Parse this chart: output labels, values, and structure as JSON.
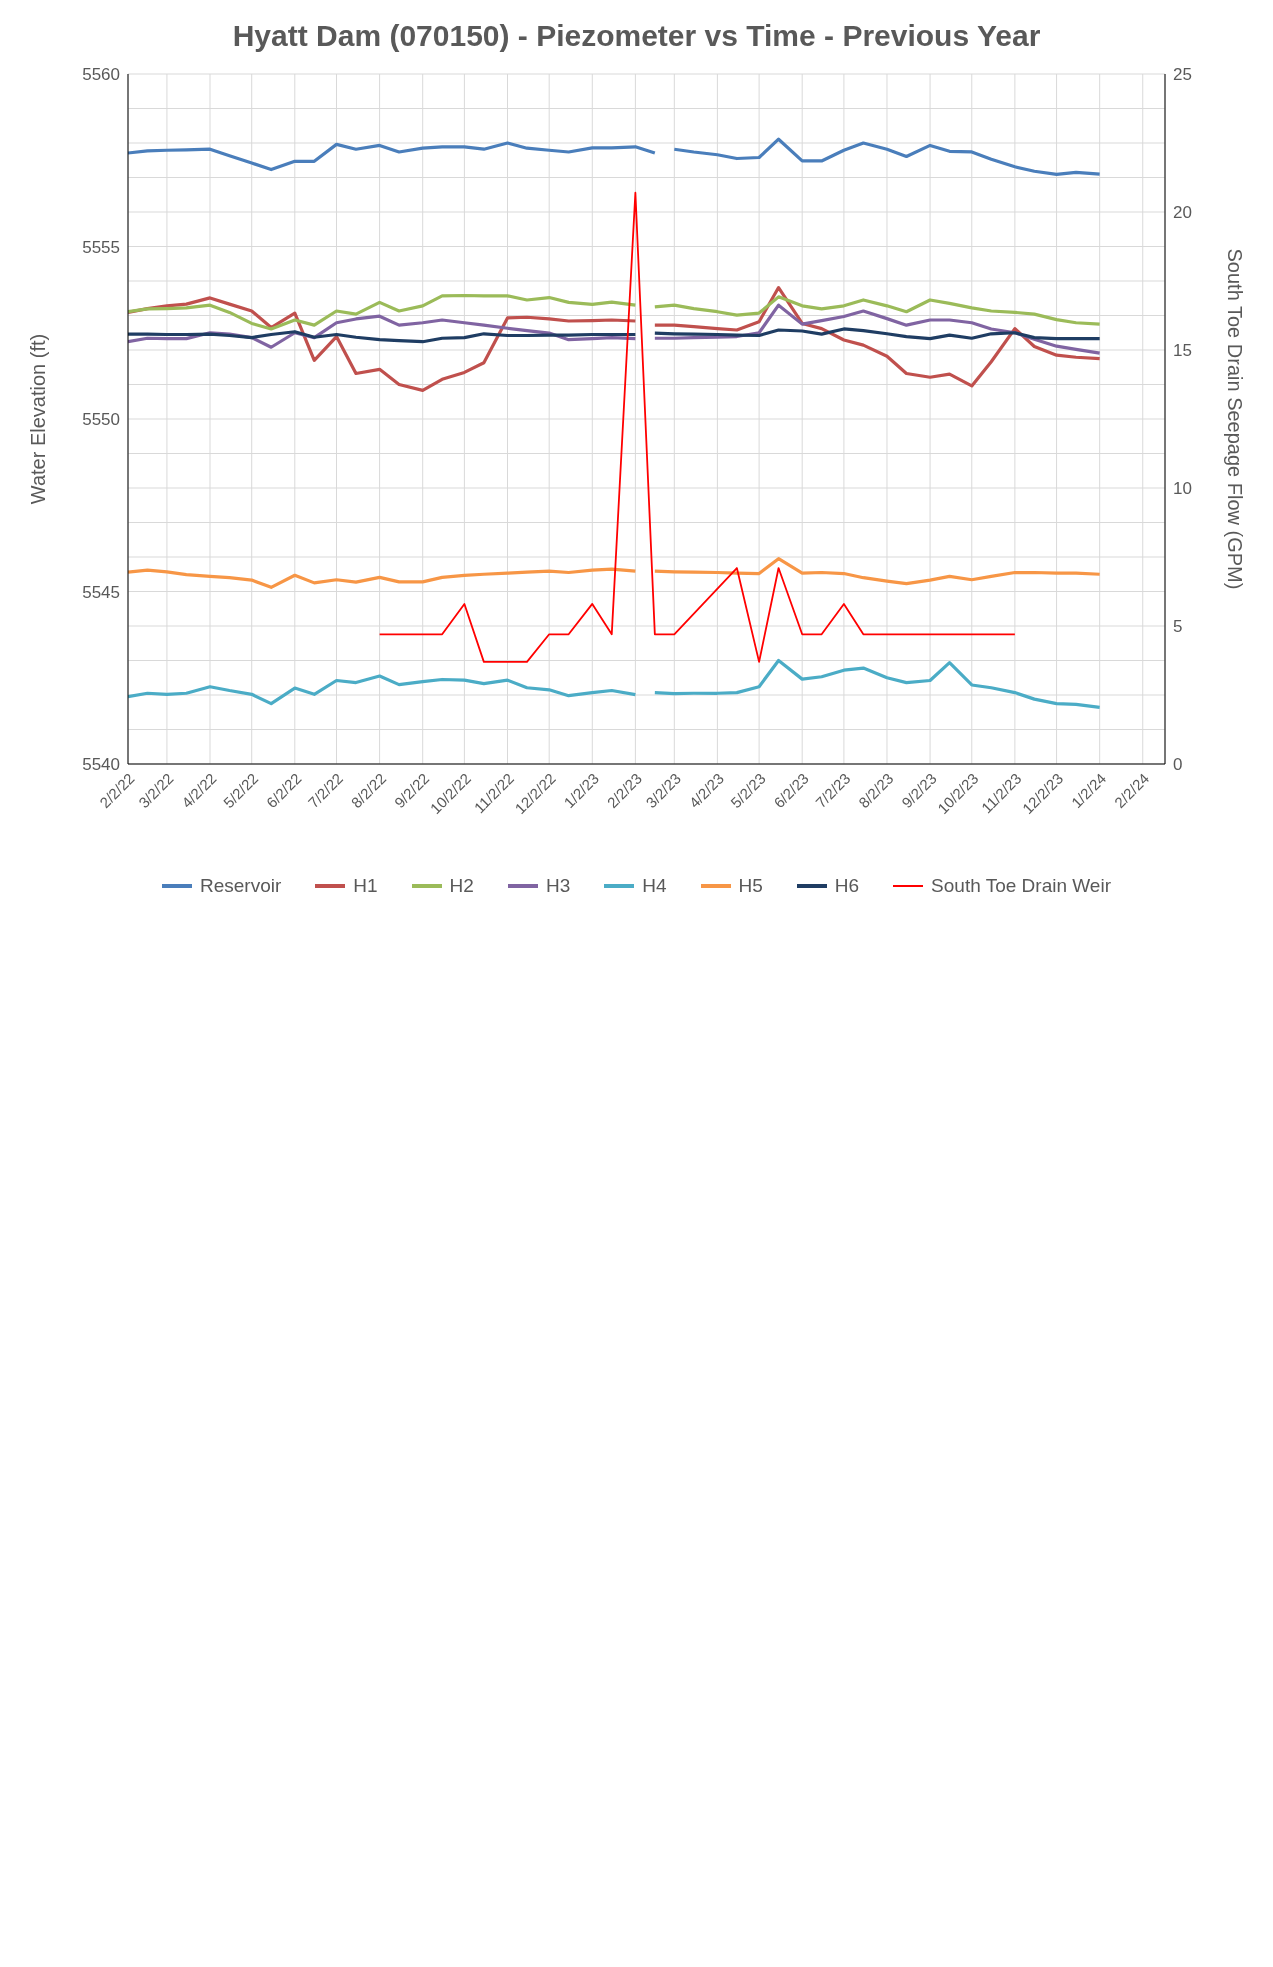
{
  "chart_data": {
    "type": "line",
    "title": "Hyatt Dam (070150) - Piezometer vs Time - Previous Year",
    "ylabel": "Water Elevation (ft)",
    "y2label": "South Toe Drain Seepage Flow (GPM)",
    "x": [
      "2022-02-02",
      "2022-02-16",
      "2022-03-02",
      "2022-03-16",
      "2022-04-02",
      "2022-04-16",
      "2022-05-02",
      "2022-05-16",
      "2022-06-02",
      "2022-06-16",
      "2022-07-02",
      "2022-07-16",
      "2022-08-02",
      "2022-08-16",
      "2022-09-02",
      "2022-09-16",
      "2022-10-02",
      "2022-10-16",
      "2022-11-02",
      "2022-11-16",
      "2022-12-02",
      "2022-12-16",
      "2023-01-02",
      "2023-01-16",
      "2023-02-02",
      "2023-02-09",
      "2023-02-16",
      "2023-03-02",
      "2023-03-16",
      "2023-04-02",
      "2023-04-16",
      "2023-05-02",
      "2023-05-16",
      "2023-06-02",
      "2023-06-16",
      "2023-07-02",
      "2023-07-16",
      "2023-08-02",
      "2023-08-16",
      "2023-09-02",
      "2023-09-16",
      "2023-10-02",
      "2023-10-16",
      "2023-11-02",
      "2023-11-16",
      "2023-12-02",
      "2023-12-16",
      "2024-01-02"
    ],
    "series": [
      {
        "name": "Reservoir",
        "color": "#4a7ebb",
        "x": [
          "2022-02-02",
          "2022-02-16",
          "2022-03-02",
          "2022-03-16",
          "2022-04-02",
          "2022-04-16",
          "2022-05-02",
          "2022-05-16",
          "2022-06-02",
          "2022-06-16",
          "2022-07-02",
          "2022-07-16",
          "2022-08-02",
          "2022-08-16",
          "2022-09-02",
          "2022-09-16",
          "2022-10-02",
          "2022-10-16",
          "2022-11-02",
          "2022-11-16",
          "2022-12-02",
          "2022-12-16",
          "2023-01-02",
          "2023-01-16",
          "2023-02-02",
          "2023-02-16",
          "2023-02-23",
          "2023-03-02",
          "2023-03-16",
          "2023-04-02",
          "2023-04-16",
          "2023-05-02",
          "2023-05-16",
          "2023-06-02",
          "2023-06-16",
          "2023-07-02",
          "2023-07-16",
          "2023-08-02",
          "2023-08-16",
          "2023-09-02",
          "2023-09-16",
          "2023-10-02",
          "2023-10-16",
          "2023-11-02",
          "2023-11-16",
          "2023-12-02",
          "2023-12-16",
          "2024-01-02"
        ],
        "values": [
          5557.71,
          5557.77,
          5557.79,
          5557.8,
          5557.82,
          5557.63,
          5557.42,
          5557.23,
          5557.47,
          5557.47,
          5557.96,
          5557.82,
          5557.93,
          5557.74,
          5557.85,
          5557.89,
          5557.89,
          5557.82,
          5558.0,
          5557.85,
          5557.79,
          5557.74,
          5557.86,
          5557.86,
          5557.89,
          5557.71,
          null,
          5557.82,
          5557.74,
          5557.66,
          5557.55,
          5557.58,
          5558.11,
          5557.48,
          5557.48,
          5557.79,
          5558.0,
          5557.82,
          5557.61,
          5557.93,
          5557.76,
          5557.74,
          5557.53,
          5557.31,
          5557.18,
          5557.09,
          5557.15,
          5557.1
        ]
      },
      {
        "name": "H1",
        "color": "#c0504d",
        "values": [
          5553.09,
          5553.2,
          5553.28,
          5553.33,
          5553.51,
          5553.33,
          5553.13,
          5552.65,
          5553.07,
          5551.7,
          5552.39,
          5551.32,
          5551.44,
          5551.0,
          5550.83,
          5551.15,
          5551.35,
          5551.63,
          5552.93,
          5552.95,
          5552.9,
          5552.84,
          5552.85,
          5552.87,
          5552.84,
          null,
          5552.72,
          5552.72,
          5552.68,
          5552.62,
          5552.58,
          5552.82,
          5553.81,
          5552.77,
          5552.62,
          5552.29,
          5552.14,
          5551.82,
          5551.32,
          5551.21,
          5551.3,
          5550.96,
          5551.66,
          5552.62,
          5552.1,
          5551.85,
          5551.79,
          5551.75
        ]
      },
      {
        "name": "H2",
        "color": "#9bbb59",
        "values": [
          5553.11,
          5553.19,
          5553.2,
          5553.22,
          5553.3,
          5553.09,
          5552.77,
          5552.61,
          5552.87,
          5552.72,
          5553.13,
          5553.04,
          5553.38,
          5553.13,
          5553.28,
          5553.57,
          5553.58,
          5553.57,
          5553.57,
          5553.45,
          5553.52,
          5553.38,
          5553.32,
          5553.39,
          5553.3,
          null,
          5553.25,
          5553.3,
          5553.2,
          5553.11,
          5553.01,
          5553.07,
          5553.54,
          5553.28,
          5553.19,
          5553.28,
          5553.45,
          5553.28,
          5553.11,
          5553.45,
          5553.35,
          5553.22,
          5553.13,
          5553.09,
          5553.04,
          5552.88,
          5552.79,
          5552.75
        ]
      },
      {
        "name": "H3",
        "color": "#8064a2",
        "values": [
          5552.24,
          5552.34,
          5552.33,
          5552.33,
          5552.5,
          5552.46,
          5552.36,
          5552.08,
          5552.5,
          5552.36,
          5552.79,
          5552.9,
          5552.98,
          5552.72,
          5552.79,
          5552.87,
          5552.79,
          5552.72,
          5552.63,
          5552.56,
          5552.49,
          5552.3,
          5552.33,
          5552.36,
          5552.33,
          null,
          5552.34,
          5552.34,
          5552.36,
          5552.37,
          5552.39,
          5552.5,
          5553.3,
          5552.75,
          5552.85,
          5552.97,
          5553.13,
          5552.91,
          5552.72,
          5552.87,
          5552.87,
          5552.79,
          5552.61,
          5552.5,
          5552.31,
          5552.11,
          5552.02,
          5551.91
        ]
      },
      {
        "name": "H4",
        "color": "#4bacc6",
        "values": [
          5541.95,
          5542.05,
          5542.02,
          5542.05,
          5542.24,
          5542.13,
          5542.02,
          5541.75,
          5542.2,
          5542.02,
          5542.42,
          5542.36,
          5542.55,
          5542.3,
          5542.39,
          5542.45,
          5542.43,
          5542.33,
          5542.43,
          5542.21,
          5542.15,
          5541.98,
          5542.07,
          5542.13,
          5542.01,
          null,
          5542.07,
          5542.04,
          5542.05,
          5542.05,
          5542.07,
          5542.24,
          5543.0,
          5542.46,
          5542.53,
          5542.72,
          5542.78,
          5542.5,
          5542.36,
          5542.42,
          5542.94,
          5542.29,
          5542.21,
          5542.07,
          5541.88,
          5541.75,
          5541.73,
          5541.64
        ]
      },
      {
        "name": "H5",
        "color": "#f79646",
        "values": [
          5545.56,
          5545.62,
          5545.57,
          5545.49,
          5545.44,
          5545.4,
          5545.33,
          5545.12,
          5545.47,
          5545.25,
          5545.34,
          5545.27,
          5545.41,
          5545.28,
          5545.28,
          5545.41,
          5545.47,
          5545.5,
          5545.53,
          5545.56,
          5545.59,
          5545.55,
          5545.62,
          5545.65,
          5545.59,
          null,
          5545.59,
          5545.57,
          5545.56,
          5545.55,
          5545.53,
          5545.52,
          5545.95,
          5545.53,
          5545.55,
          5545.52,
          5545.4,
          5545.3,
          5545.23,
          5545.33,
          5545.44,
          5545.34,
          5545.44,
          5545.55,
          5545.55,
          5545.53,
          5545.53,
          5545.5
        ]
      },
      {
        "name": "H6",
        "color": "#1f3d63",
        "values": [
          5552.46,
          5552.46,
          5552.45,
          5552.45,
          5552.46,
          5552.42,
          5552.36,
          5552.45,
          5552.53,
          5552.37,
          5552.45,
          5552.37,
          5552.3,
          5552.27,
          5552.24,
          5552.34,
          5552.36,
          5552.47,
          5552.42,
          5552.42,
          5552.43,
          5552.43,
          5552.45,
          5552.45,
          5552.45,
          null,
          5552.49,
          5552.47,
          5552.46,
          5552.45,
          5552.43,
          5552.42,
          5552.58,
          5552.55,
          5552.46,
          5552.61,
          5552.56,
          5552.47,
          5552.39,
          5552.33,
          5552.43,
          5552.34,
          5552.47,
          5552.5,
          5552.36,
          5552.33,
          5552.33,
          5552.33
        ]
      },
      {
        "name": "South Toe Drain Weir",
        "color": "#ff0000",
        "axis": "y2",
        "x": [
          "2022-08-02",
          "2022-08-16",
          "2022-09-02",
          "2022-09-16",
          "2022-10-02",
          "2022-10-16",
          "2022-11-02",
          "2022-11-16",
          "2022-12-02",
          "2022-12-16",
          "2023-01-02",
          "2023-01-16",
          "2023-02-02",
          "2023-02-16",
          "2023-03-02",
          "2023-04-16",
          "2023-05-02",
          "2023-05-16",
          "2023-06-02",
          "2023-06-16",
          "2023-07-02",
          "2023-07-16",
          "2023-08-02",
          "2023-08-16",
          "2023-09-02",
          "2023-09-16",
          "2023-10-02",
          "2023-10-16",
          "2023-11-02"
        ],
        "values": [
          4.7,
          4.7,
          4.7,
          4.7,
          5.8,
          3.7,
          3.7,
          3.7,
          4.7,
          4.7,
          5.8,
          4.7,
          20.7,
          4.7,
          4.7,
          7.1,
          3.7,
          7.1,
          4.7,
          4.7,
          5.8,
          4.7,
          4.7,
          4.7,
          4.7,
          4.7,
          4.7,
          4.7,
          4.7
        ]
      }
    ],
    "xlim": [
      "2022-02-02",
      "2024-02-18"
    ],
    "xticks": [
      {
        "value": "2022-02-02",
        "label": "2/2/22"
      },
      {
        "value": "2022-03-02",
        "label": "3/2/22"
      },
      {
        "value": "2022-04-02",
        "label": "4/2/22"
      },
      {
        "value": "2022-05-02",
        "label": "5/2/22"
      },
      {
        "value": "2022-06-02",
        "label": "6/2/22"
      },
      {
        "value": "2022-07-02",
        "label": "7/2/22"
      },
      {
        "value": "2022-08-02",
        "label": "8/2/22"
      },
      {
        "value": "2022-09-02",
        "label": "9/2/22"
      },
      {
        "value": "2022-10-02",
        "label": "10/2/22"
      },
      {
        "value": "2022-11-02",
        "label": "11/2/22"
      },
      {
        "value": "2022-12-02",
        "label": "12/2/22"
      },
      {
        "value": "2023-01-02",
        "label": "1/2/23"
      },
      {
        "value": "2023-02-02",
        "label": "2/2/23"
      },
      {
        "value": "2023-03-02",
        "label": "3/2/23"
      },
      {
        "value": "2023-04-02",
        "label": "4/2/23"
      },
      {
        "value": "2023-05-02",
        "label": "5/2/23"
      },
      {
        "value": "2023-06-02",
        "label": "6/2/23"
      },
      {
        "value": "2023-07-02",
        "label": "7/2/23"
      },
      {
        "value": "2023-08-02",
        "label": "8/2/23"
      },
      {
        "value": "2023-09-02",
        "label": "9/2/23"
      },
      {
        "value": "2023-10-02",
        "label": "10/2/23"
      },
      {
        "value": "2023-11-02",
        "label": "11/2/23"
      },
      {
        "value": "2023-12-02",
        "label": "12/2/23"
      },
      {
        "value": "2024-01-02",
        "label": "1/2/24"
      },
      {
        "value": "2024-02-02",
        "label": "2/2/24"
      }
    ],
    "ylim": [
      5540,
      5560
    ],
    "yticks": [
      5540,
      {
        "value": 5541,
        "label": null
      },
      {
        "value": 5542,
        "label": null
      },
      {
        "value": 5543,
        "label": null
      },
      {
        "value": 5544,
        "label": null
      },
      5545,
      {
        "value": 5546,
        "label": null
      },
      {
        "value": 5547,
        "label": null
      },
      {
        "value": 5548,
        "label": null
      },
      {
        "value": 5549,
        "label": null
      },
      5550,
      {
        "value": 5551,
        "label": null
      },
      {
        "value": 5552,
        "label": null
      },
      {
        "value": 5553,
        "label": null
      },
      {
        "value": 5554,
        "label": null
      },
      5555,
      {
        "value": 5556,
        "label": null
      },
      {
        "value": 5557,
        "label": null
      },
      {
        "value": 5558,
        "label": null
      },
      {
        "value": 5559,
        "label": null
      },
      5560
    ],
    "y2lim": [
      0,
      25
    ],
    "y2ticks": [
      0,
      5,
      10,
      15,
      20,
      25
    ],
    "grid": true,
    "legend": "bottom"
  }
}
